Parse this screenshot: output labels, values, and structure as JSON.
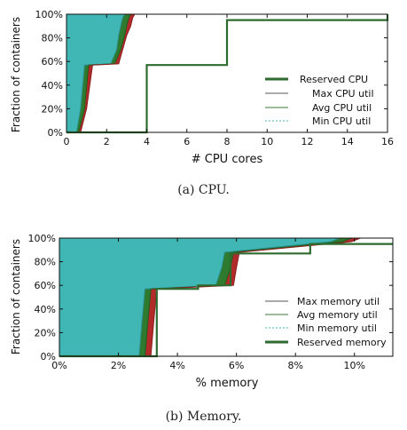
{
  "figure_a": {
    "caption": "(a)  CPU.",
    "chart_data": {
      "type": "line",
      "xlabel": "# CPU cores",
      "ylabel": "Fraction of containers",
      "xlim": [
        0,
        16
      ],
      "ylim": [
        0,
        100
      ],
      "x_ticks": [
        "0",
        "2",
        "4",
        "6",
        "8",
        "10",
        "12",
        "14",
        "16"
      ],
      "y_ticks": [
        "0%",
        "20%",
        "40%",
        "60%",
        "80%",
        "100%"
      ],
      "legend_position": "right",
      "legend": [
        "Reserved CPU",
        "Max CPU util",
        "Avg CPU util",
        "Min CPU util"
      ],
      "colors": {
        "reserved": "#2e6b2e",
        "max": "#b32a2a",
        "avg": "#2e7a2e",
        "min": "#41b7b5"
      },
      "series": [
        {
          "name": "Reserved CPU",
          "x": [
            0,
            4,
            4,
            8,
            8,
            16,
            16
          ],
          "y": [
            0,
            0,
            57,
            57,
            95,
            95,
            100
          ]
        },
        {
          "name": "Max CPU util",
          "x": [
            0.7,
            1.0,
            1.3,
            2.6,
            2.8,
            3.0,
            3.2,
            3.3,
            3.4
          ],
          "y": [
            0,
            20,
            57,
            58,
            70,
            82,
            90,
            97,
            100
          ]
        },
        {
          "name": "Avg CPU util",
          "x": [
            0.6,
            0.9,
            1.1,
            2.4,
            2.7,
            2.9,
            3.0,
            3.1,
            3.2
          ],
          "y": [
            0,
            20,
            57,
            58,
            70,
            82,
            90,
            97,
            100
          ]
        },
        {
          "name": "Min CPU util",
          "x": [
            0.5,
            0.7,
            0.9,
            2.2,
            2.5,
            2.6,
            2.7,
            2.8,
            2.9
          ],
          "y": [
            0,
            20,
            57,
            58,
            70,
            82,
            90,
            97,
            100
          ]
        }
      ]
    }
  },
  "figure_b": {
    "caption": "(b)  Memory.",
    "chart_data": {
      "type": "line",
      "xlabel": "% memory",
      "ylabel": "Fraction of containers",
      "xlim": [
        0,
        11.3
      ],
      "ylim": [
        0,
        100
      ],
      "x_ticks": [
        "0%",
        "2%",
        "4%",
        "6%",
        "8%",
        "10%"
      ],
      "y_ticks": [
        "0%",
        "20%",
        "40%",
        "60%",
        "80%",
        "100%"
      ],
      "legend_position": "lower-right",
      "legend": [
        "Max memory util",
        "Avg memory util",
        "Min memory util",
        "Reserved memory"
      ],
      "colors": {
        "reserved": "#2e6b2e",
        "max": "#b32a2a",
        "avg": "#2e7a2e",
        "min": "#41b7b5"
      },
      "series": [
        {
          "name": "Reserved memory",
          "x": [
            0,
            3.3,
            3.3,
            4.7,
            4.7,
            5.8,
            5.8,
            8.5,
            8.5,
            11.3
          ],
          "y": [
            0,
            0,
            57,
            57,
            60,
            60,
            87,
            87,
            95,
            95
          ]
        },
        {
          "name": "Max memory util",
          "x": [
            3.1,
            3.2,
            3.3,
            5.9,
            6.0,
            6.1,
            9.9,
            10.2
          ],
          "y": [
            0,
            30,
            57,
            60,
            75,
            88,
            97,
            100
          ]
        },
        {
          "name": "Avg memory util",
          "x": [
            2.9,
            3.0,
            3.1,
            5.6,
            5.8,
            5.9,
            9.6,
            9.9
          ],
          "y": [
            0,
            30,
            57,
            60,
            75,
            88,
            97,
            100
          ]
        },
        {
          "name": "Min memory util",
          "x": [
            2.7,
            2.8,
            2.9,
            5.3,
            5.5,
            5.6,
            9.2,
            9.5
          ],
          "y": [
            0,
            30,
            57,
            60,
            75,
            88,
            97,
            100
          ]
        }
      ]
    }
  }
}
